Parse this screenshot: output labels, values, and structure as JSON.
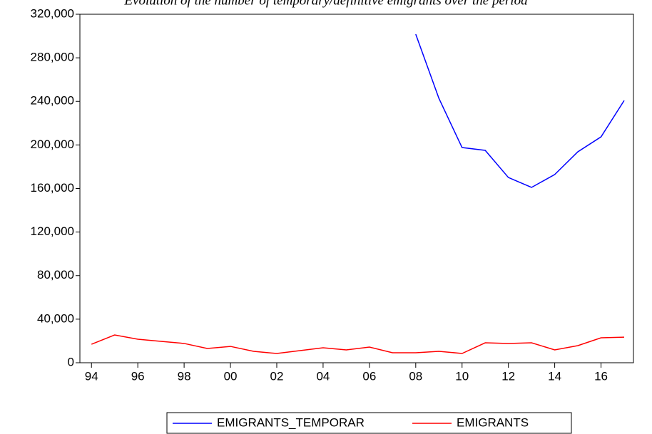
{
  "chart_data": {
    "type": "line",
    "title": "Evolution of the number of temporary/definitive emigrants over the period",
    "x": [
      1994,
      1995,
      1996,
      1997,
      1998,
      1999,
      2000,
      2001,
      2002,
      2003,
      2004,
      2005,
      2006,
      2007,
      2008,
      2009,
      2010,
      2011,
      2012,
      2013,
      2014,
      2015,
      2016,
      2017
    ],
    "series": [
      {
        "name": "EMIGRANTS_TEMPORAR",
        "color": "#0000ff",
        "values": [
          null,
          null,
          null,
          null,
          null,
          null,
          null,
          null,
          null,
          null,
          null,
          null,
          null,
          null,
          301700,
          242800,
          197600,
          195000,
          170100,
          161000,
          172800,
          193700,
          207400,
          240800
        ]
      },
      {
        "name": "EMIGRANTS",
        "color": "#ff0000",
        "values": [
          17000,
          25500,
          21600,
          19600,
          17700,
          13100,
          15000,
          10500,
          8500,
          11100,
          13700,
          11800,
          14400,
          9200,
          9200,
          10500,
          8500,
          18300,
          17700,
          18300,
          11800,
          15700,
          22900,
          23500
        ]
      }
    ],
    "xlim": [
      1993.5,
      2017.4
    ],
    "xticks": [
      {
        "value": 1994,
        "label": "94"
      },
      {
        "value": 1996,
        "label": "96"
      },
      {
        "value": 1998,
        "label": "98"
      },
      {
        "value": 2000,
        "label": "00"
      },
      {
        "value": 2002,
        "label": "02"
      },
      {
        "value": 2004,
        "label": "04"
      },
      {
        "value": 2006,
        "label": "06"
      },
      {
        "value": 2008,
        "label": "08"
      },
      {
        "value": 2010,
        "label": "10"
      },
      {
        "value": 2012,
        "label": "12"
      },
      {
        "value": 2014,
        "label": "14"
      },
      {
        "value": 2016,
        "label": "16"
      }
    ],
    "ylim": [
      0,
      320000
    ],
    "yticks": [
      0,
      {
        "value": 40000,
        "label": "40,000"
      },
      {
        "value": 80000,
        "label": "80,000"
      },
      {
        "value": 120000,
        "label": "120,000"
      },
      {
        "value": 160000,
        "label": "160,000"
      },
      {
        "value": 200000,
        "label": "200,000"
      },
      {
        "value": 240000,
        "label": "240,000"
      },
      {
        "value": 280000,
        "label": "280,000"
      },
      {
        "value": 320000,
        "label": "320,000"
      }
    ],
    "legend": "bottom"
  }
}
